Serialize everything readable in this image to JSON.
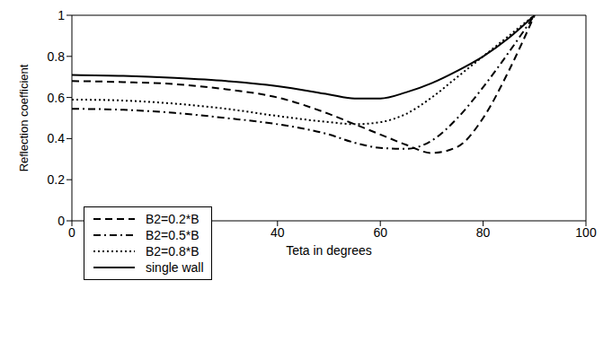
{
  "chart_data": {
    "type": "line",
    "xlabel": "Teta in degrees",
    "ylabel": "Reflection coefficient",
    "x": [
      0,
      10,
      20,
      30,
      40,
      50,
      55,
      60,
      65,
      70,
      75,
      80,
      85,
      90
    ],
    "series": [
      {
        "name": "B2=0.2*B",
        "color": "#000000",
        "line_style": "dashed",
        "values": [
          0.68,
          0.675,
          0.665,
          0.64,
          0.6,
          0.52,
          0.47,
          0.42,
          0.37,
          0.33,
          0.36,
          0.5,
          0.73,
          1.0
        ]
      },
      {
        "name": "B2=0.5*B",
        "color": "#000000",
        "line_style": "dashdot",
        "values": [
          0.545,
          0.54,
          0.525,
          0.5,
          0.47,
          0.42,
          0.38,
          0.355,
          0.35,
          0.39,
          0.5,
          0.65,
          0.82,
          1.0
        ]
      },
      {
        "name": "B2=0.8*B",
        "color": "#000000",
        "line_style": "dotted",
        "values": [
          0.59,
          0.585,
          0.57,
          0.545,
          0.51,
          0.48,
          0.47,
          0.48,
          0.52,
          0.6,
          0.7,
          0.8,
          0.9,
          1.0
        ]
      },
      {
        "name": "single wall",
        "color": "#000000",
        "line_style": "solid",
        "values": [
          0.71,
          0.705,
          0.695,
          0.68,
          0.655,
          0.615,
          0.595,
          0.595,
          0.625,
          0.67,
          0.73,
          0.8,
          0.89,
          1.0
        ]
      }
    ],
    "xlim": [
      0,
      100
    ],
    "xticks": [
      0,
      20,
      40,
      60,
      80,
      100
    ],
    "ylim": [
      0,
      1
    ],
    "yticks": [
      0,
      0.2,
      0.4,
      0.6,
      0.8,
      1
    ],
    "legend": "lower left",
    "grid": false
  }
}
